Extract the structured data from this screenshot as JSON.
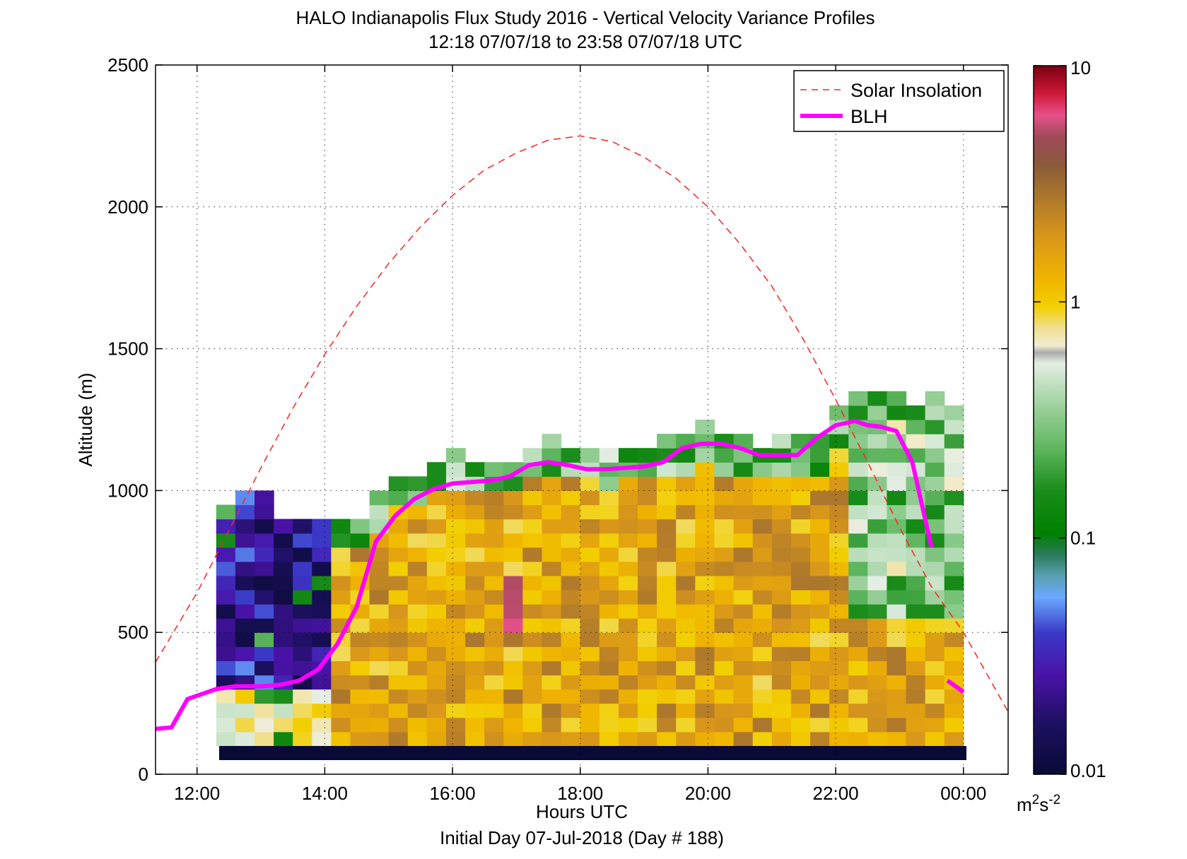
{
  "chart_data": {
    "type": "heatmap",
    "title": "HALO Indianapolis Flux Study 2016 - Vertical Velocity Variance Profiles",
    "subtitle": "12:18 07/07/18 to 23:58 07/07/18  UTC",
    "xlabel": "Hours UTC",
    "xlabel2": "Initial Day 07-Jul-2018 (Day # 188)",
    "ylabel": "Altitude (m)",
    "xlim": [
      11.35,
      24.7
    ],
    "ylim": [
      0,
      2500
    ],
    "x_ticks": [
      12,
      14,
      16,
      18,
      20,
      22,
      24
    ],
    "x_tick_labels": [
      "12:00",
      "14:00",
      "16:00",
      "18:00",
      "20:00",
      "22:00",
      "00:00"
    ],
    "y_ticks": [
      0,
      500,
      1000,
      1500,
      2000,
      2500
    ],
    "y_tick_labels": [
      "0",
      "500",
      "1000",
      "1500",
      "2000",
      "2500"
    ],
    "grid": true,
    "legend_position": "top-right",
    "colorbar": {
      "scale": "log",
      "range": [
        0.01,
        10
      ],
      "tick_values": [
        0.01,
        0.1,
        1,
        10
      ],
      "tick_labels": [
        "0.01",
        "0.1",
        "1",
        "10"
      ],
      "unit_base": "m",
      "unit_sup1": "2",
      "unit_mid": "s",
      "unit_sup2": "-2"
    },
    "series": [
      {
        "name": "Solar Insolation",
        "style": "dashed",
        "color": "#ff2020",
        "x": [
          11.35,
          12.0,
          12.5,
          13.0,
          13.5,
          14.0,
          14.5,
          15.0,
          15.5,
          16.0,
          16.5,
          17.0,
          17.5,
          18.0,
          18.5,
          19.0,
          19.5,
          20.0,
          20.5,
          21.0,
          21.5,
          22.0,
          22.5,
          23.0,
          23.5,
          24.0,
          24.7
        ],
        "y": [
          395,
          640,
          860,
          1080,
          1290,
          1480,
          1650,
          1800,
          1930,
          2040,
          2130,
          2190,
          2235,
          2250,
          2230,
          2175,
          2100,
          2000,
          1870,
          1720,
          1530,
          1320,
          1100,
          870,
          660,
          500,
          220
        ]
      },
      {
        "name": "BLH",
        "style": "solid",
        "color": "#ff00ff",
        "x": [
          11.35,
          11.6,
          11.85,
          12.3,
          12.6,
          13.0,
          13.3,
          13.6,
          13.9,
          14.2,
          14.5,
          14.8,
          15.1,
          15.4,
          15.7,
          16.0,
          16.3,
          16.6,
          16.9,
          17.2,
          17.5,
          17.8,
          18.1,
          18.4,
          18.7,
          19.0,
          19.3,
          19.6,
          19.9,
          20.2,
          20.5,
          20.8,
          21.1,
          21.4,
          21.7,
          22.0,
          22.3,
          22.5,
          22.7,
          22.95,
          23.2,
          23.5,
          23.75,
          24.0
        ],
        "y": [
          160,
          165,
          265,
          300,
          310,
          310,
          315,
          330,
          370,
          460,
          590,
          820,
          910,
          970,
          1005,
          1025,
          1030,
          1035,
          1050,
          1090,
          1100,
          1090,
          1075,
          1075,
          1080,
          1085,
          1100,
          1150,
          1165,
          1165,
          1150,
          1125,
          1125,
          1125,
          1185,
          1230,
          1245,
          1230,
          1225,
          1210,
          1100,
          800,
          330,
          290
        ]
      }
    ],
    "cell_alt_top_m": [
      905,
      955,
      955,
      880,
      880,
      860,
      860,
      860,
      955,
      1050,
      1050,
      1100,
      1115,
      1090,
      1090,
      1090,
      1150,
      1190,
      1150,
      1150,
      1130,
      1150,
      1150,
      1190,
      1200,
      1240,
      1190,
      1170,
      1150,
      1190,
      1190,
      1190,
      1295,
      1340,
      1340,
      1320,
      1300,
      1340,
      1300
    ],
    "cell_hours_start": 12.3,
    "cell_hours_step": 0.3,
    "cell_alt_bottom_m": 100,
    "cell_alt_step_m": 50
  }
}
